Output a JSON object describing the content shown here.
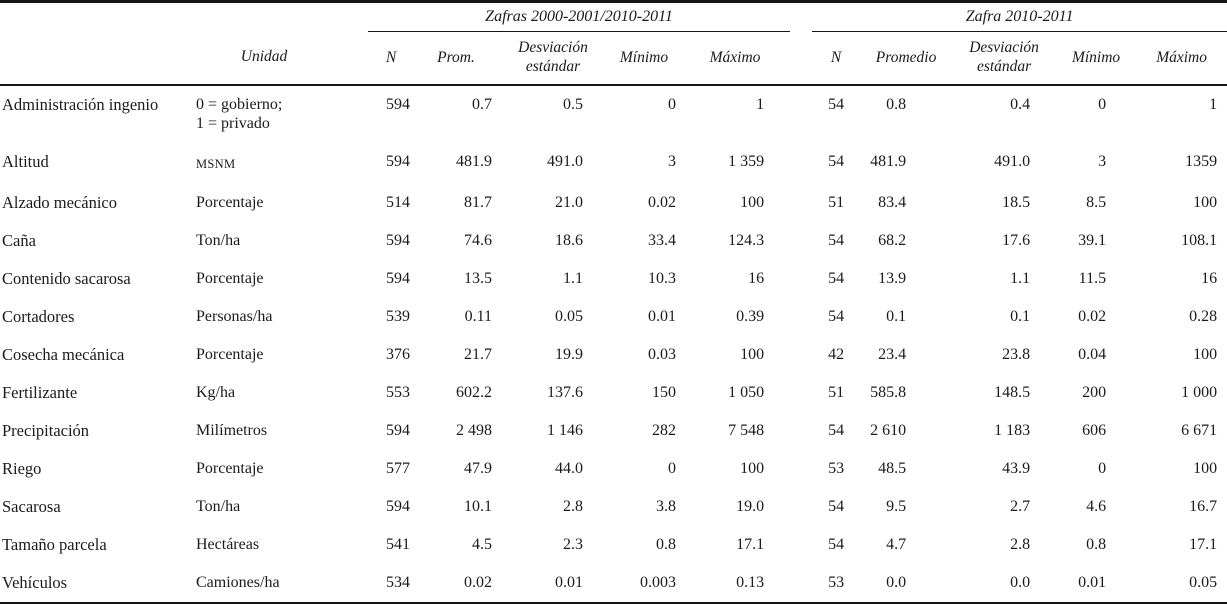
{
  "colors": {
    "text": "#1b1b1b",
    "rule": "#161616",
    "background": "#ffffff"
  },
  "table": {
    "groups": [
      {
        "title": "Zafras 2000-2001/2010-2011"
      },
      {
        "title": "Zafra 2010-2011"
      }
    ],
    "headers": {
      "variable": "",
      "unidad": "Unidad",
      "g1": [
        "N",
        "Prom.",
        "Desviación estándar",
        "Mínimo",
        "Máximo"
      ],
      "g2": [
        "N",
        "Promedio",
        "Desviación estándar",
        "Mínimo",
        "Máximo"
      ]
    },
    "rows": [
      {
        "variable": "Administración ingenio",
        "unidad": "0 = gobierno;\n1 = privado",
        "unidad_small": false,
        "g1": [
          "594",
          "0.7",
          "0.5",
          "0",
          "1"
        ],
        "g2": [
          "54",
          "0.8",
          "0.4",
          "0",
          "1"
        ]
      },
      {
        "variable": "Altitud",
        "unidad": "MSNM",
        "unidad_small": true,
        "g1": [
          "594",
          "481.9",
          "491.0",
          "3",
          "1 359"
        ],
        "g2": [
          "54",
          "481.9",
          "491.0",
          "3",
          "1359"
        ]
      },
      {
        "variable": "Alzado mecánico",
        "unidad": "Porcentaje",
        "unidad_small": false,
        "g1": [
          "514",
          "81.7",
          "21.0",
          "0.02",
          "100"
        ],
        "g2": [
          "51",
          "83.4",
          "18.5",
          "8.5",
          "100"
        ]
      },
      {
        "variable": "Caña",
        "unidad": "Ton/ha",
        "unidad_small": false,
        "g1": [
          "594",
          "74.6",
          "18.6",
          "33.4",
          "124.3"
        ],
        "g2": [
          "54",
          "68.2",
          "17.6",
          "39.1",
          "108.1"
        ]
      },
      {
        "variable": "Contenido sacarosa",
        "unidad": "Porcentaje",
        "unidad_small": false,
        "g1": [
          "594",
          "13.5",
          "1.1",
          "10.3",
          "16"
        ],
        "g2": [
          "54",
          "13.9",
          "1.1",
          "11.5",
          "16"
        ]
      },
      {
        "variable": "Cortadores",
        "unidad": "Personas/ha",
        "unidad_small": false,
        "g1": [
          "539",
          "0.11",
          "0.05",
          "0.01",
          "0.39"
        ],
        "g2": [
          "54",
          "0.1",
          "0.1",
          "0.02",
          "0.28"
        ]
      },
      {
        "variable": "Cosecha mecánica",
        "unidad": "Porcentaje",
        "unidad_small": false,
        "g1": [
          "376",
          "21.7",
          "19.9",
          "0.03",
          "100"
        ],
        "g2": [
          "42",
          "23.4",
          "23.8",
          "0.04",
          "100"
        ]
      },
      {
        "variable": "Fertilizante",
        "unidad": "Kg/ha",
        "unidad_small": false,
        "g1": [
          "553",
          "602.2",
          "137.6",
          "150",
          "1 050"
        ],
        "g2": [
          "51",
          "585.8",
          "148.5",
          "200",
          "1 000"
        ]
      },
      {
        "variable": "Precipitación",
        "unidad": "Milímetros",
        "unidad_small": false,
        "g1": [
          "594",
          "2 498",
          "1 146",
          "282",
          "7 548"
        ],
        "g2": [
          "54",
          "2 610",
          "1 183",
          "606",
          "6 671"
        ]
      },
      {
        "variable": "Riego",
        "unidad": "Porcentaje",
        "unidad_small": false,
        "g1": [
          "577",
          "47.9",
          "44.0",
          "0",
          "100"
        ],
        "g2": [
          "53",
          "48.5",
          "43.9",
          "0",
          "100"
        ]
      },
      {
        "variable": "Sacarosa",
        "unidad": "Ton/ha",
        "unidad_small": false,
        "g1": [
          "594",
          "10.1",
          "2.8",
          "3.8",
          "19.0"
        ],
        "g2": [
          "54",
          "9.5",
          "2.7",
          "4.6",
          "16.7"
        ]
      },
      {
        "variable": "Tamaño parcela",
        "unidad": "Hectáreas",
        "unidad_small": false,
        "g1": [
          "541",
          "4.5",
          "2.3",
          "0.8",
          "17.1"
        ],
        "g2": [
          "54",
          "4.7",
          "2.8",
          "0.8",
          "17.1"
        ]
      },
      {
        "variable": "Vehículos",
        "unidad": "Camiones/ha",
        "unidad_small": false,
        "g1": [
          "534",
          "0.02",
          "0.01",
          "0.003",
          "0.13"
        ],
        "g2": [
          "53",
          "0.0",
          "0.0",
          "0.01",
          "0.05"
        ]
      }
    ]
  }
}
